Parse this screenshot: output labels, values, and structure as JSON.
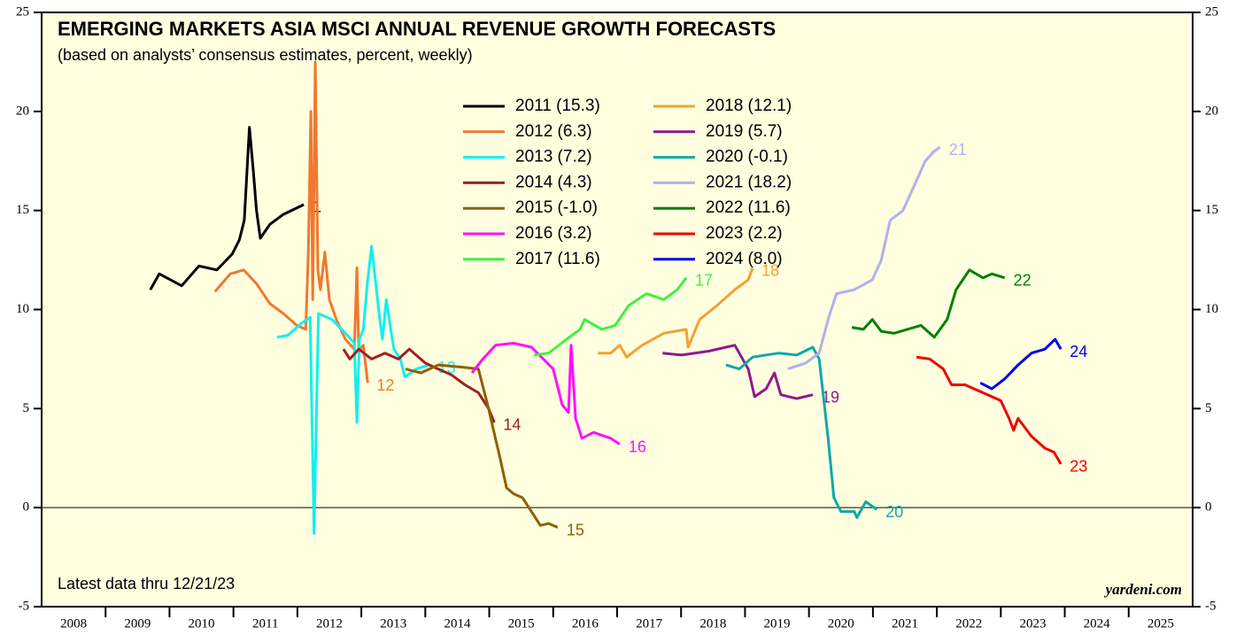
{
  "chart_data": {
    "type": "line",
    "title": "EMERGING MARKETS ASIA MSCI ANNUAL REVENUE GROWTH FORECASTS",
    "subtitle": "(based on analysts’ consensus estimates, percent, weekly)",
    "annotation": "Latest data thru 12/21/23",
    "source": "yardeni.com",
    "xlim": [
      2008,
      2026
    ],
    "xticks": [
      2008,
      2009,
      2010,
      2011,
      2012,
      2013,
      2014,
      2015,
      2016,
      2017,
      2018,
      2019,
      2020,
      2021,
      2022,
      2023,
      2024,
      2025
    ],
    "ylim": [
      -5,
      25
    ],
    "yticks": [
      -5,
      0,
      5,
      10,
      15,
      20,
      25
    ],
    "y2lim": [
      -5,
      25
    ],
    "y2ticks": [
      -5,
      0,
      5,
      10,
      15,
      20,
      25
    ],
    "hline": 0,
    "series": [
      {
        "name": "2011 (15.3)",
        "color": "#000000",
        "end_label": "1",
        "x": [
          2009.7,
          2009.84,
          2010.19,
          2010.46,
          2010.74,
          2010.98,
          2011.09,
          2011.17,
          2011.25,
          2011.31,
          2011.36,
          2011.42,
          2011.57,
          2011.78,
          2012.1
        ],
        "values": [
          11.0,
          11.8,
          11.2,
          12.2,
          12.0,
          12.8,
          13.5,
          14.5,
          19.2,
          17.0,
          15.0,
          13.6,
          14.3,
          14.8,
          15.3
        ]
      },
      {
        "name": "2012 (6.3)",
        "color": "#f07830",
        "end_label": "12",
        "x": [
          2010.71,
          2010.95,
          2011.16,
          2011.36,
          2011.57,
          2011.78,
          2011.99,
          2012.13,
          2012.17,
          2012.21,
          2012.24,
          2012.28,
          2012.32,
          2012.36,
          2012.43,
          2012.5,
          2012.61,
          2012.75,
          2012.89,
          2012.93,
          2012.96,
          2013.03,
          2013.1
        ],
        "values": [
          10.9,
          11.8,
          12.0,
          11.3,
          10.3,
          9.8,
          9.2,
          9.0,
          12.8,
          20.0,
          10.5,
          22.5,
          12.0,
          11.0,
          12.9,
          10.5,
          9.5,
          8.5,
          8.0,
          12.1,
          7.9,
          8.2,
          6.3
        ]
      },
      {
        "name": "2013 (7.2)",
        "color": "#10f0f0",
        "end_label": "13",
        "x": [
          2011.68,
          2011.85,
          2012.06,
          2012.2,
          2012.26,
          2012.33,
          2012.54,
          2012.75,
          2012.89,
          2012.93,
          2012.97,
          2013.03,
          2013.1,
          2013.16,
          2013.27,
          2013.33,
          2013.39,
          2013.46,
          2013.51,
          2013.61,
          2013.68,
          2013.86,
          2014.06
        ],
        "values": [
          8.6,
          8.7,
          9.3,
          9.6,
          -1.3,
          9.8,
          9.5,
          8.8,
          8.3,
          4.3,
          8.5,
          9.0,
          11.5,
          13.2,
          10.0,
          8.5,
          10.5,
          9.0,
          8.0,
          7.5,
          6.6,
          7.0,
          7.2
        ]
      },
      {
        "name": "2014 (4.3)",
        "color": "#a02020",
        "end_label": "14",
        "x": [
          2012.72,
          2012.82,
          2012.96,
          2013.16,
          2013.37,
          2013.58,
          2013.75,
          2014.0,
          2014.2,
          2014.41,
          2014.62,
          2014.83,
          2014.99,
          2015.08
        ],
        "values": [
          8.0,
          7.5,
          8.0,
          7.5,
          7.8,
          7.5,
          8.0,
          7.3,
          7.0,
          6.7,
          6.2,
          5.8,
          5.0,
          4.3
        ]
      },
      {
        "name": "2015 (-1.0)",
        "color": "#906000",
        "end_label": "15",
        "x": [
          2013.69,
          2013.93,
          2014.2,
          2014.55,
          2014.83,
          2014.99,
          2015.06,
          2015.17,
          2015.27,
          2015.38,
          2015.52,
          2015.66,
          2015.8,
          2015.93,
          2016.07
        ],
        "values": [
          7.0,
          6.8,
          7.2,
          7.1,
          7.0,
          5.0,
          4.0,
          2.5,
          1.0,
          0.7,
          0.5,
          -0.2,
          -0.9,
          -0.8,
          -1.0
        ]
      },
      {
        "name": "2016 (3.2)",
        "color": "#ff10ff",
        "end_label": "16",
        "x": [
          2014.73,
          2014.9,
          2015.1,
          2015.38,
          2015.66,
          2016.0,
          2016.14,
          2016.24,
          2016.28,
          2016.35,
          2016.45,
          2016.63,
          2016.9,
          2017.04
        ],
        "values": [
          6.8,
          7.5,
          8.2,
          8.3,
          8.1,
          7.0,
          5.2,
          4.8,
          8.2,
          4.5,
          3.5,
          3.8,
          3.5,
          3.2
        ]
      },
      {
        "name": "2017 (11.6)",
        "color": "#40f040",
        "end_label": "17",
        "x": [
          2015.7,
          2015.93,
          2016.21,
          2016.42,
          2016.49,
          2016.76,
          2016.97,
          2017.18,
          2017.46,
          2017.73,
          2017.94,
          2018.08
        ],
        "values": [
          7.7,
          7.8,
          8.5,
          9.0,
          9.5,
          9.0,
          9.2,
          10.2,
          10.8,
          10.5,
          11.0,
          11.6
        ]
      },
      {
        "name": "2018 (12.1)",
        "color": "#f5a030",
        "end_label": "18",
        "x": [
          2016.7,
          2016.9,
          2017.04,
          2017.15,
          2017.39,
          2017.73,
          2018.08,
          2018.11,
          2018.29,
          2018.56,
          2018.84,
          2019.05,
          2019.12
        ],
        "values": [
          7.8,
          7.8,
          8.2,
          7.6,
          8.2,
          8.8,
          9.0,
          8.1,
          9.5,
          10.2,
          11.0,
          11.5,
          12.1
        ]
      },
      {
        "name": "2019 (5.7)",
        "color": "#901890",
        "end_label": "19",
        "x": [
          2017.71,
          2018.01,
          2018.43,
          2018.84,
          2018.98,
          2019.05,
          2019.15,
          2019.33,
          2019.46,
          2019.56,
          2019.81,
          2020.06
        ],
        "values": [
          7.8,
          7.7,
          7.9,
          8.2,
          7.4,
          7.0,
          5.6,
          6.0,
          6.8,
          5.7,
          5.5,
          5.7
        ]
      },
      {
        "name": "2020 (-0.1)",
        "color": "#10a8a8",
        "end_label": "20",
        "x": [
          2018.7,
          2018.91,
          2019.12,
          2019.53,
          2019.81,
          2020.06,
          2020.16,
          2020.3,
          2020.39,
          2020.5,
          2020.71,
          2020.75,
          2020.89,
          2021.06
        ],
        "values": [
          7.2,
          7.0,
          7.6,
          7.8,
          7.7,
          8.1,
          7.5,
          3.5,
          0.5,
          -0.2,
          -0.2,
          -0.5,
          0.3,
          -0.1
        ]
      },
      {
        "name": "2021 (18.2)",
        "color": "#b0b0f0",
        "end_label": "21",
        "x": [
          2019.67,
          2019.95,
          2020.16,
          2020.3,
          2020.43,
          2020.71,
          2020.99,
          2021.13,
          2021.27,
          2021.47,
          2021.68,
          2021.82,
          2021.96,
          2022.05
        ],
        "values": [
          7.0,
          7.3,
          7.8,
          9.5,
          10.8,
          11.0,
          11.5,
          12.5,
          14.5,
          15.0,
          16.5,
          17.5,
          18.0,
          18.2
        ]
      },
      {
        "name": "2022 (11.6)",
        "color": "#008000",
        "end_label": "22",
        "x": [
          2020.67,
          2020.85,
          2020.99,
          2021.13,
          2021.33,
          2021.75,
          2021.96,
          2022.16,
          2022.3,
          2022.51,
          2022.72,
          2022.86,
          2023.06
        ],
        "values": [
          9.1,
          9.0,
          9.5,
          8.9,
          8.8,
          9.2,
          8.6,
          9.5,
          11.0,
          12.0,
          11.6,
          11.8,
          11.6
        ]
      },
      {
        "name": "2023 (2.2)",
        "color": "#f00000",
        "end_label": "23",
        "x": [
          2021.68,
          2021.89,
          2022.1,
          2022.23,
          2022.44,
          2022.72,
          2023.0,
          2023.13,
          2023.2,
          2023.27,
          2023.48,
          2023.69,
          2023.83,
          2023.94
        ],
        "values": [
          7.6,
          7.5,
          7.0,
          6.2,
          6.2,
          5.8,
          5.4,
          4.5,
          3.9,
          4.5,
          3.6,
          3.0,
          2.8,
          2.2
        ]
      },
      {
        "name": "2024 (8.0)",
        "color": "#0000f0",
        "end_label": "24",
        "x": [
          2022.68,
          2022.86,
          2023.06,
          2023.27,
          2023.48,
          2023.69,
          2023.85,
          2023.94
        ],
        "values": [
          6.3,
          6.0,
          6.5,
          7.2,
          7.8,
          8.0,
          8.5,
          8.0
        ]
      }
    ]
  }
}
